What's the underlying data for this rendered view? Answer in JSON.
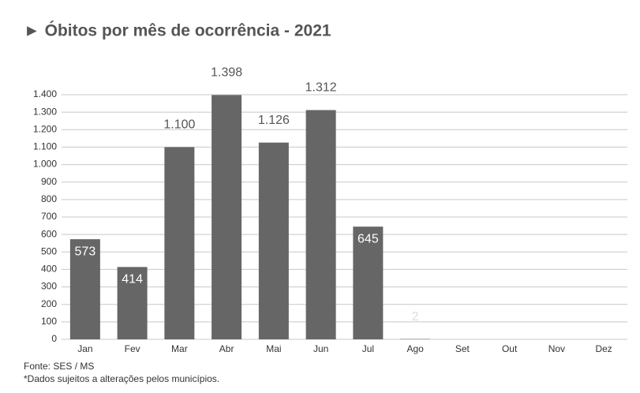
{
  "chart_data": {
    "type": "bar",
    "title": "► Óbitos por mês de ocorrência - 2021",
    "categories": [
      "Jan",
      "Fev",
      "Mar",
      "Abr",
      "Mai",
      "Jun",
      "Jul",
      "Ago",
      "Set",
      "Out",
      "Nov",
      "Dez"
    ],
    "values": [
      573,
      414,
      1100,
      1398,
      1126,
      1312,
      645,
      2,
      null,
      null,
      null,
      null
    ],
    "value_labels": [
      "573",
      "414",
      "1.100",
      "1.398",
      "1.126",
      "1.312",
      "645",
      "2",
      null,
      null,
      null,
      null
    ],
    "color": "#666666",
    "ylim": [
      0,
      1400
    ],
    "yticks": [
      0,
      100,
      200,
      300,
      400,
      500,
      600,
      700,
      800,
      900,
      {
        "value": 1000,
        "label": "1.000"
      },
      {
        "value": 1100,
        "label": "1.100"
      },
      {
        "value": 1200,
        "label": "1.200"
      },
      {
        "value": 1300,
        "label": "1.300"
      },
      {
        "value": 1400,
        "label": "1.400"
      }
    ],
    "grid": true,
    "source": "Fonte: SES / MS",
    "note": "*Dados sujeitos a alterações pelos municípios."
  }
}
